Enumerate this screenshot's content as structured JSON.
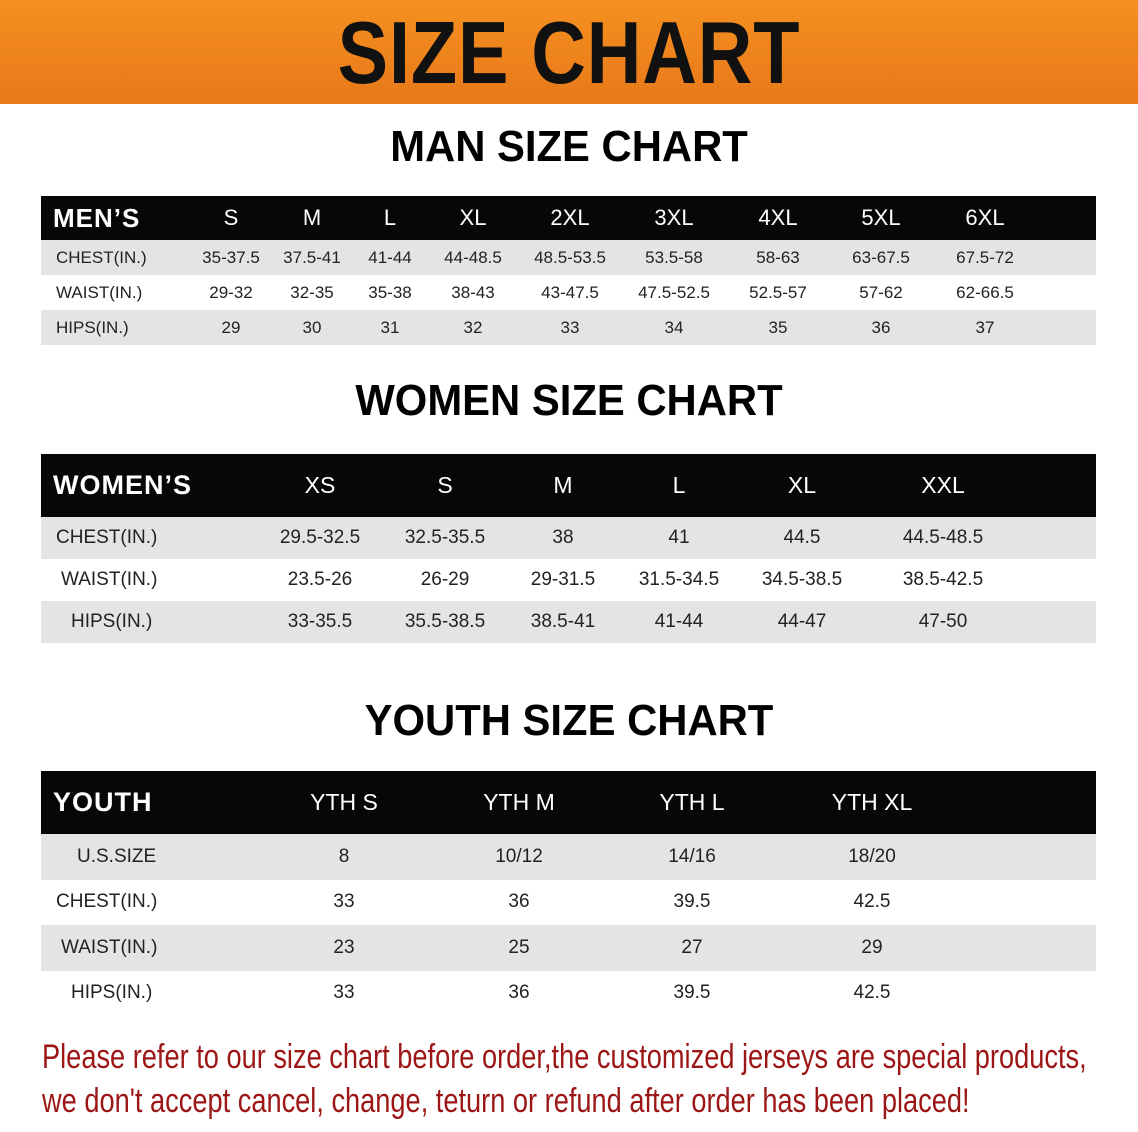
{
  "banner": {
    "title": "SIZE CHART",
    "color": "#ee8420"
  },
  "men": {
    "title": "MAN SIZE CHART",
    "header": "MEN’S",
    "sizes": [
      "S",
      "M",
      "L",
      "XL",
      "2XL",
      "3XL",
      "4XL",
      "5XL",
      "6XL"
    ],
    "rows": [
      {
        "label": "CHEST(IN.)",
        "values": [
          "35-37.5",
          "37.5-41",
          "41-44",
          "44-48.5",
          "48.5-53.5",
          "53.5-58",
          "58-63",
          "63-67.5",
          "67.5-72"
        ]
      },
      {
        "label": "WAIST(IN.)",
        "values": [
          "29-32",
          "32-35",
          "35-38",
          "38-43",
          "43-47.5",
          "47.5-52.5",
          "52.5-57",
          "57-62",
          "62-66.5"
        ]
      },
      {
        "label": "HIPS(IN.)",
        "values": [
          "29",
          "30",
          "31",
          "32",
          "33",
          "34",
          "35",
          "36",
          "37"
        ]
      }
    ]
  },
  "women": {
    "title": "WOMEN SIZE CHART",
    "header": "WOMEN’S",
    "sizes": [
      "XS",
      "S",
      "M",
      "L",
      "XL",
      "XXL"
    ],
    "rows": [
      {
        "label": "CHEST(IN.)",
        "values": [
          "29.5-32.5",
          "32.5-35.5",
          "38",
          "41",
          "44.5",
          "44.5-48.5"
        ]
      },
      {
        "label": "WAIST(IN.)",
        "values": [
          "23.5-26",
          "26-29",
          "29-31.5",
          "31.5-34.5",
          "34.5-38.5",
          "38.5-42.5"
        ]
      },
      {
        "label": "HIPS(IN.)",
        "values": [
          "33-35.5",
          "35.5-38.5",
          "38.5-41",
          "41-44",
          "44-47",
          "47-50"
        ]
      }
    ]
  },
  "youth": {
    "title": "YOUTH SIZE CHART",
    "header": "YOUTH",
    "sizes": [
      "YTH S",
      "YTH M",
      "YTH L",
      "YTH XL"
    ],
    "rows": [
      {
        "label": "U.S.SIZE",
        "values": [
          "8",
          "10/12",
          "14/16",
          "18/20"
        ]
      },
      {
        "label": "CHEST(IN.)",
        "values": [
          "33",
          "36",
          "39.5",
          "42.5"
        ]
      },
      {
        "label": "WAIST(IN.)",
        "values": [
          "23",
          "25",
          "27",
          "29"
        ]
      },
      {
        "label": "HIPS(IN.)",
        "values": [
          "33",
          "36",
          "39.5",
          "42.5"
        ]
      }
    ]
  },
  "notice": {
    "line1": "Please refer to our size chart before order,the customized jerseys are special products,",
    "line2": "we don't accept cancel, change, teturn or refund after order has been placed!",
    "color": "#9c1616"
  }
}
